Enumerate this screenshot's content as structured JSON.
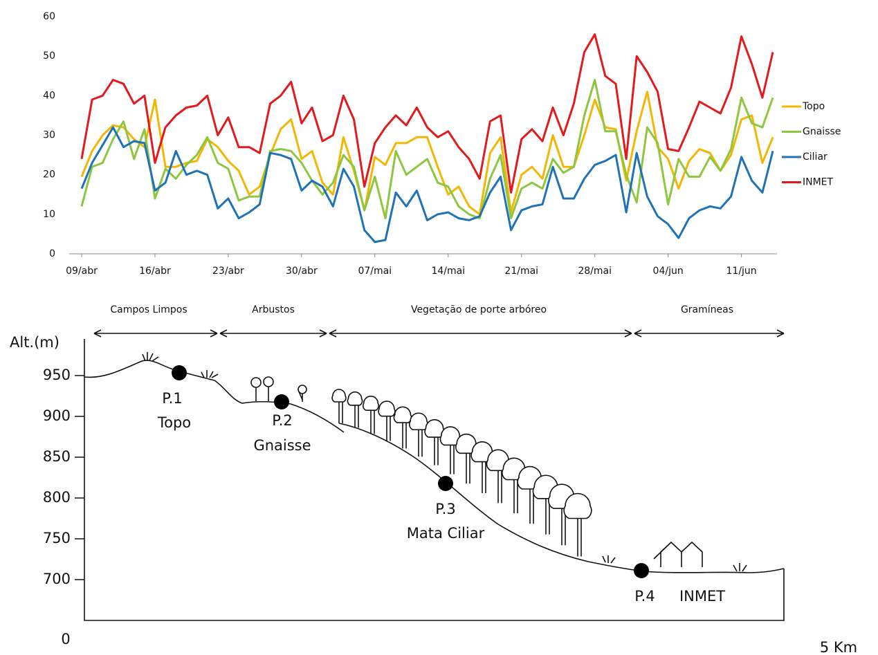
{
  "chart_data": {
    "type": "line",
    "categories": [
      "09/abr",
      null,
      null,
      null,
      null,
      null,
      null,
      "16/abr",
      null,
      null,
      null,
      null,
      null,
      null,
      "23/abr",
      null,
      null,
      null,
      null,
      null,
      null,
      "30/abr",
      null,
      null,
      null,
      null,
      null,
      null,
      "07/mai",
      null,
      null,
      null,
      null,
      null,
      null,
      "14/mai",
      null,
      null,
      null,
      null,
      null,
      null,
      "21/mai",
      null,
      null,
      null,
      null,
      null,
      null,
      "28/mai",
      null,
      null,
      null,
      null,
      null,
      null,
      "04/jun",
      null,
      null,
      null,
      null,
      null,
      null,
      "11/jun",
      null,
      null,
      null
    ],
    "series": [
      {
        "name": "Topo",
        "color": "#f2b705",
        "values": [
          19.5,
          26,
          30,
          32.5,
          32,
          29,
          27,
          39,
          22,
          22,
          23,
          23.5,
          29,
          27,
          23.5,
          21,
          15,
          17,
          25,
          31.5,
          34,
          24,
          26,
          18,
          15,
          29.5,
          21,
          11,
          24.5,
          22.5,
          28,
          28,
          29.5,
          29.5,
          22,
          15,
          17,
          12,
          10,
          25.5,
          29.5,
          10.5,
          20,
          22,
          19,
          30,
          22,
          22,
          30,
          39,
          32,
          31.5,
          18.5,
          31,
          41,
          27,
          24,
          16.5,
          23.5,
          26.5,
          25.5,
          21,
          25,
          34,
          35,
          23,
          29.5
        ]
      },
      {
        "name": "Gnaisse",
        "color": "#8dc73f",
        "values": [
          12,
          22,
          23,
          29,
          33.5,
          24,
          31.5,
          14,
          21.5,
          19,
          22.5,
          25,
          29.5,
          23,
          21.5,
          13.5,
          14.5,
          14.5,
          26,
          26.5,
          26,
          23,
          18.5,
          15,
          18,
          25,
          22,
          11,
          19.5,
          9,
          26,
          20,
          22,
          24,
          18,
          17,
          12,
          10,
          9,
          19,
          25,
          9,
          16.5,
          18,
          16.5,
          24,
          20.5,
          22,
          35,
          44,
          31,
          31,
          20,
          13,
          32,
          28,
          12.5,
          24,
          19.5,
          19.5,
          24.5,
          21,
          26.5,
          39.5,
          33,
          32,
          39.5
        ]
      },
      {
        "name": "Ciliar",
        "color": "#1f72b8",
        "values": [
          16.5,
          23,
          27.5,
          32,
          27,
          28.5,
          28,
          16,
          18,
          26,
          20,
          21,
          20,
          11.5,
          14,
          9,
          10.5,
          12.5,
          25.5,
          25,
          24,
          16,
          18.5,
          17,
          12,
          21.5,
          17,
          6,
          3,
          3.5,
          15.5,
          12,
          16,
          8.5,
          10,
          10.5,
          9,
          8.5,
          9.5,
          15.5,
          19.5,
          6,
          11,
          12,
          12.5,
          22,
          14,
          14,
          19,
          22.5,
          23.5,
          25,
          10.5,
          25.5,
          14.5,
          9.5,
          7.5,
          4,
          9,
          11,
          12,
          11.5,
          14.5,
          24.5,
          18.5,
          15.5,
          26
        ]
      },
      {
        "name": "INMET",
        "color": "#e3191b",
        "values": [
          24,
          39,
          40,
          44,
          43,
          38,
          40,
          23,
          32,
          35,
          37,
          37.5,
          40,
          30,
          34.5,
          27,
          27,
          25.5,
          38,
          40,
          43.5,
          33,
          37,
          28.5,
          30,
          40,
          34,
          17,
          28,
          32,
          35,
          32.5,
          37,
          32,
          29.5,
          31,
          27,
          24,
          19,
          33.5,
          35,
          15.5,
          29,
          31.5,
          28.5,
          37,
          30,
          38,
          51,
          55.5,
          45,
          43,
          24,
          50,
          46,
          41,
          26.5,
          26,
          32,
          38.5,
          37,
          35.5,
          42,
          55,
          48,
          39.5,
          51
        ]
      }
    ],
    "ylim": [
      0,
      60
    ],
    "yticks": [
      0,
      10,
      20,
      30,
      40,
      50,
      60
    ],
    "grid": false,
    "legend": "right"
  },
  "profile": {
    "zones": [
      "Campos Limpos",
      "Arbustos",
      "Vegetação de porte arbóreo",
      "Gramíneas"
    ],
    "altitude_axis": {
      "label": "Alt.(m)",
      "ticks": [
        950,
        900,
        850,
        800,
        750,
        700
      ]
    },
    "points": [
      {
        "id": "P.1",
        "name": "Topo"
      },
      {
        "id": "P.2",
        "name": "Gnaisse"
      },
      {
        "id": "P.3",
        "name": "Mata Ciliar"
      },
      {
        "id": "P.4",
        "name": "INMET"
      }
    ],
    "distance_start": "0",
    "distance_end": "5 Km"
  }
}
